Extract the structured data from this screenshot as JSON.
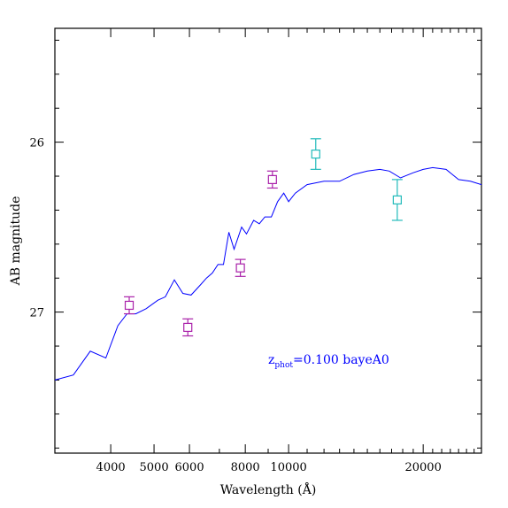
{
  "chart_data": {
    "type": "scatter",
    "xlabel": "Wavelength (Å)",
    "ylabel": "AB magnitude",
    "x_scale": "log",
    "xlim": [
      3000,
      27000
    ],
    "ylim": [
      27.83,
      25.33
    ],
    "y_inverted": true,
    "x_ticks_labeled": [
      4000,
      5000,
      6000,
      8000,
      10000,
      20000
    ],
    "x_tick_labels": [
      "4000",
      "5000",
      "6000",
      "8000",
      "10000",
      "20000"
    ],
    "y_ticks_labeled": [
      26,
      27
    ],
    "y_tick_labels": [
      "26",
      "27"
    ],
    "annotation": {
      "prefix": "z",
      "subscript": "phot",
      "suffix": "=0.100 bayeA0",
      "color": "#0000ff"
    },
    "series": [
      {
        "type": "line",
        "color": "#0000ff",
        "x": [
          3000,
          3300,
          3600,
          3900,
          4150,
          4350,
          4550,
          4800,
          5100,
          5300,
          5550,
          5800,
          6050,
          6350,
          6550,
          6750,
          6950,
          7150,
          7350,
          7550,
          7850,
          8050,
          8350,
          8600,
          8850,
          9150,
          9450,
          9750,
          10000,
          10350,
          11000,
          12000,
          13000,
          14000,
          15000,
          16000,
          16800,
          17800,
          19000,
          20000,
          21000,
          22500,
          24000,
          25500,
          27000
        ],
        "y": [
          27.4,
          27.37,
          27.23,
          27.27,
          27.08,
          27.01,
          27.01,
          26.98,
          26.93,
          26.91,
          26.81,
          26.89,
          26.9,
          26.84,
          26.8,
          26.77,
          26.72,
          26.72,
          26.53,
          26.63,
          26.5,
          26.54,
          26.46,
          26.48,
          26.44,
          26.44,
          26.35,
          26.3,
          26.35,
          26.3,
          26.25,
          26.23,
          26.23,
          26.19,
          26.17,
          26.16,
          26.17,
          26.21,
          26.18,
          26.16,
          26.15,
          26.16,
          26.22,
          26.23,
          26.25
        ]
      },
      {
        "type": "errorbar",
        "color": "#aa22aa",
        "x": [
          4400,
          5950,
          7800,
          9200
        ],
        "y": [
          26.96,
          27.09,
          26.74,
          26.22
        ],
        "err": [
          0.05,
          0.05,
          0.05,
          0.05
        ]
      },
      {
        "type": "errorbar",
        "color": "#22bbbb",
        "x": [
          11500,
          17500
        ],
        "y": [
          26.07,
          26.34
        ],
        "err": [
          0.09,
          0.12
        ]
      }
    ]
  }
}
